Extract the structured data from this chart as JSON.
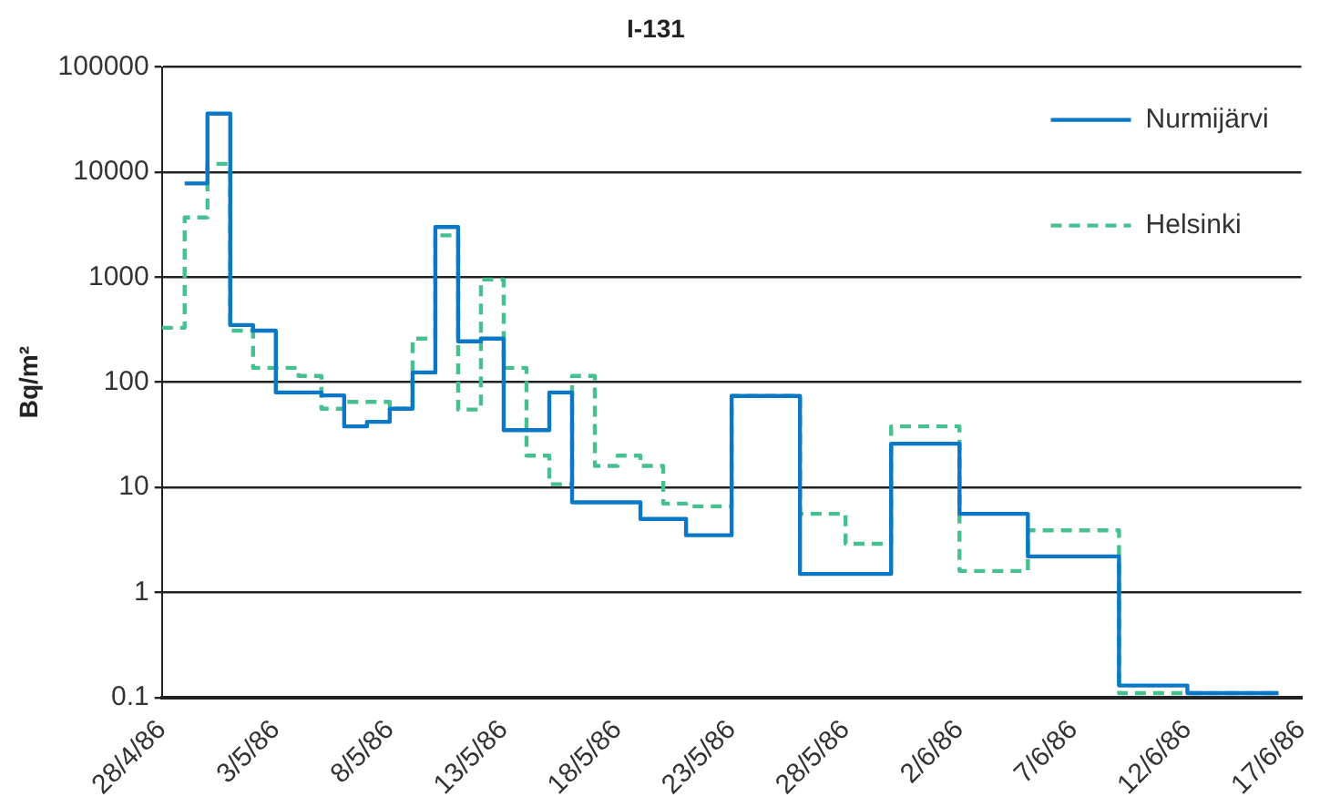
{
  "chart_data": {
    "type": "step",
    "title": "I-131",
    "ylabel": "Bq/m²",
    "log": "y",
    "grid": "y",
    "legend": "top right",
    "marker": "none",
    "xlim": [
      "1986-04-28",
      "1986-06-17"
    ],
    "xticks": [
      {
        "value": "1986-04-28",
        "label": "28/4/86"
      },
      {
        "value": "1986-05-03",
        "label": "3/5/86"
      },
      {
        "value": "1986-05-08",
        "label": "8/5/86"
      },
      {
        "value": "1986-05-13",
        "label": "13/5/86"
      },
      {
        "value": "1986-05-18",
        "label": "18/5/86"
      },
      {
        "value": "1986-05-23",
        "label": "23/5/86"
      },
      {
        "value": "1986-05-28",
        "label": "28/5/86"
      },
      {
        "value": "1986-06-02",
        "label": "2/6/86"
      },
      {
        "value": "1986-06-07",
        "label": "7/6/86"
      },
      {
        "value": "1986-06-12",
        "label": "12/6/86"
      },
      {
        "value": "1986-06-17",
        "label": "17/6/86"
      }
    ],
    "ylim": [
      0.1,
      100000
    ],
    "yticks": [
      0.1,
      1,
      10,
      100,
      1000,
      10000,
      100000
    ],
    "series": [
      {
        "name": "Nurmijärvi",
        "color": "#0a78c6",
        "line_style": "solid",
        "x": [
          "1986-04-29",
          "1986-04-30",
          "1986-05-01",
          "1986-05-02",
          "1986-05-03",
          "1986-05-05",
          "1986-05-06",
          "1986-05-07",
          "1986-05-08",
          "1986-05-09",
          "1986-05-10",
          "1986-05-11",
          "1986-05-12",
          "1986-05-13",
          "1986-05-15",
          "1986-05-16",
          "1986-05-19",
          "1986-05-21",
          "1986-05-23",
          "1986-05-26",
          "1986-05-30",
          "1986-06-02",
          "1986-06-05",
          "1986-06-09",
          "1986-06-12",
          "1986-06-16"
        ],
        "values": [
          7800,
          36000,
          350,
          310,
          80,
          75,
          38,
          42,
          56,
          124,
          3000,
          245,
          260,
          35,
          80,
          7.2,
          5.0,
          3.5,
          74,
          1.5,
          26,
          5.6,
          2.2,
          0.13,
          0.11,
          0.11
        ]
      },
      {
        "name": "Helsinki",
        "color": "#45c08e",
        "line_style": "dashed",
        "x": [
          "1986-04-28",
          "1986-04-29",
          "1986-04-30",
          "1986-05-01",
          "1986-05-02",
          "1986-05-04",
          "1986-05-05",
          "1986-05-06",
          "1986-05-08",
          "1986-05-09",
          "1986-05-10",
          "1986-05-11",
          "1986-05-12",
          "1986-05-13",
          "1986-05-14",
          "1986-05-15",
          "1986-05-16",
          "1986-05-17",
          "1986-05-18",
          "1986-05-19",
          "1986-05-20",
          "1986-05-21",
          "1986-05-23",
          "1986-05-26",
          "1986-05-28",
          "1986-05-30",
          "1986-06-02",
          "1986-06-05",
          "1986-06-09",
          "1986-06-16"
        ],
        "values": [
          330,
          3700,
          12000,
          310,
          137,
          115,
          56,
          65,
          56,
          260,
          2500,
          55,
          950,
          137,
          20,
          10.7,
          115,
          16,
          20,
          16,
          7.0,
          6.6,
          74,
          5.6,
          2.9,
          38,
          1.6,
          3.9,
          0.11,
          0.11
        ]
      }
    ]
  }
}
